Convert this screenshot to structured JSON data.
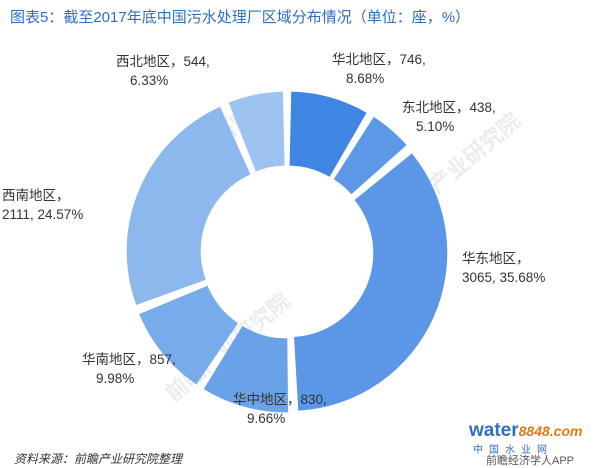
{
  "title": "图表5：截至2017年底中国污水处理厂区域分布情况（单位：座，%）",
  "source": "资料来源：前瞻产业研究院整理",
  "watermark": "前瞻产业研究院",
  "logo": {
    "main": "water",
    "num": "8848",
    "suffix": ".com",
    "sub": "中国水业网",
    "app": "前瞻经济学人APP"
  },
  "colors": {
    "slices": [
      "#3f86e2",
      "#5c98e6",
      "#5b97e6",
      "#6aa2e8",
      "#78abea",
      "#8cb8ee",
      "#9dc3f0"
    ]
  },
  "chart_data": {
    "type": "pie",
    "variant": "donut",
    "title": "图表5：截至2017年底中国污水处理厂区域分布情况（单位：座，%）",
    "slices": [
      {
        "name": "华北地区",
        "value": 746,
        "percent": "8.68%",
        "line1": "华北地区，746,",
        "line2": "8.68%"
      },
      {
        "name": "东北地区",
        "value": 438,
        "percent": "5.10%",
        "line1": "东北地区，438,",
        "line2": "5.10%"
      },
      {
        "name": "华东地区",
        "value": 3065,
        "percent": "35.68%",
        "line1": "华东地区，",
        "line2": "3065, 35.68%"
      },
      {
        "name": "华中地区",
        "value": 830,
        "percent": "9.66%",
        "line1": "华中地区，830,",
        "line2": "9.66%"
      },
      {
        "name": "华南地区",
        "value": 857,
        "percent": "9.98%",
        "line1": "华南地区，857,",
        "line2": "9.98%"
      },
      {
        "name": "西南地区",
        "value": 2111,
        "percent": "24.57%",
        "line1": "西南地区，",
        "line2": "2111, 24.57%"
      },
      {
        "name": "西北地区",
        "value": 544,
        "percent": "6.33%",
        "line1": "西北地区，544,",
        "line2": "6.33%"
      }
    ]
  }
}
